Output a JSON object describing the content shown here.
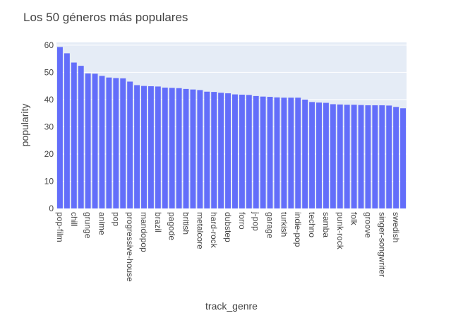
{
  "chart_data": {
    "type": "bar",
    "title": "Los 50 géneros más populares",
    "xlabel": "track_genre",
    "ylabel": "popularity",
    "ylim": [
      0,
      61
    ],
    "yticks": [
      0,
      10,
      20,
      30,
      40,
      50,
      60
    ],
    "grid": true,
    "colors": {
      "bar": "#636efa",
      "plot_bg": "#e5ecf6",
      "grid": "#ffffff",
      "text": "#444444"
    },
    "categories": [
      "pop-film",
      "",
      "chill",
      "",
      "grunge",
      "",
      "anime",
      "",
      "pop",
      "",
      "progressive-house",
      "",
      "mandopop",
      "",
      "brazil",
      "",
      "pagode",
      "",
      "british",
      "",
      "metalcore",
      "",
      "hard-rock",
      "",
      "dubstep",
      "",
      "forro",
      "",
      "j-pop",
      "",
      "garage",
      "",
      "turkish",
      "",
      "indie-pop",
      "",
      "techno",
      "",
      "samba",
      "",
      "punk-rock",
      "",
      "folk",
      "",
      "groove",
      "",
      "singer-songwriter",
      "",
      "swedish",
      ""
    ],
    "values": [
      59.3,
      57.0,
      53.6,
      52.4,
      49.6,
      49.5,
      48.7,
      48.1,
      47.9,
      47.8,
      46.6,
      45.3,
      45.0,
      44.9,
      44.8,
      44.4,
      44.3,
      44.2,
      43.9,
      43.7,
      43.5,
      42.9,
      42.8,
      42.5,
      42.3,
      41.9,
      41.8,
      41.7,
      41.3,
      41.1,
      41.0,
      40.8,
      40.7,
      40.7,
      40.7,
      40.0,
      39.1,
      38.9,
      38.8,
      38.3,
      38.2,
      38.1,
      38.1,
      38.0,
      37.9,
      37.9,
      37.9,
      37.8,
      37.3,
      36.8
    ]
  }
}
